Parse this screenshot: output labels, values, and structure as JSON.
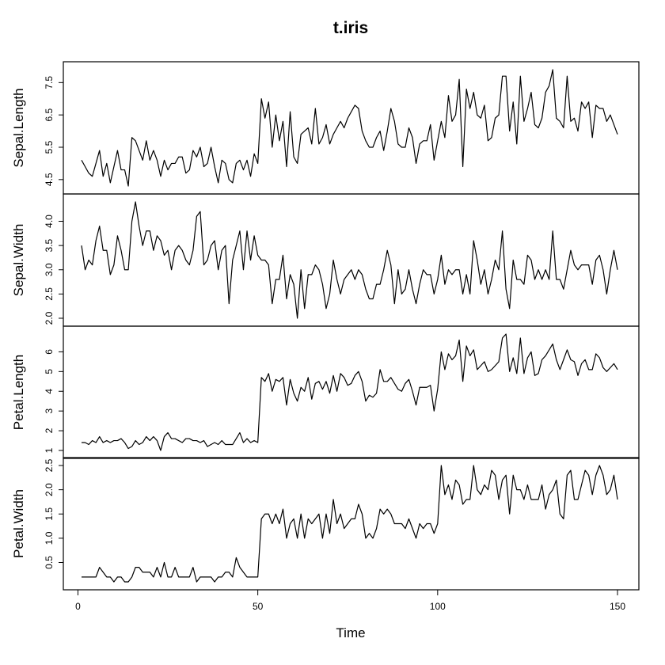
{
  "chart_data": {
    "type": "line",
    "title": "t.iris",
    "xlabel": "Time",
    "xlim": [
      1,
      150
    ],
    "x_ticks": [
      0,
      50,
      100,
      150
    ],
    "x_start": 1,
    "panels": [
      {
        "name": "Sepal.Length",
        "ylim": [
          4.3,
          7.9
        ],
        "y_ticks": [
          4.5,
          5.5,
          6.5,
          7.5
        ],
        "values": [
          5.1,
          4.9,
          4.7,
          4.6,
          5.0,
          5.4,
          4.6,
          5.0,
          4.4,
          4.9,
          5.4,
          4.8,
          4.8,
          4.3,
          5.8,
          5.7,
          5.4,
          5.1,
          5.7,
          5.1,
          5.4,
          5.1,
          4.6,
          5.1,
          4.8,
          5.0,
          5.0,
          5.2,
          5.2,
          4.7,
          4.8,
          5.4,
          5.2,
          5.5,
          4.9,
          5.0,
          5.5,
          4.9,
          4.4,
          5.1,
          5.0,
          4.5,
          4.4,
          5.0,
          5.1,
          4.8,
          5.1,
          4.6,
          5.3,
          5.0,
          7.0,
          6.4,
          6.9,
          5.5,
          6.5,
          5.7,
          6.3,
          4.9,
          6.6,
          5.2,
          5.0,
          5.9,
          6.0,
          6.1,
          5.6,
          6.7,
          5.6,
          5.8,
          6.2,
          5.6,
          5.9,
          6.1,
          6.3,
          6.1,
          6.4,
          6.6,
          6.8,
          6.7,
          6.0,
          5.7,
          5.5,
          5.5,
          5.8,
          6.0,
          5.4,
          6.0,
          6.7,
          6.3,
          5.6,
          5.5,
          5.5,
          6.1,
          5.8,
          5.0,
          5.6,
          5.7,
          5.7,
          6.2,
          5.1,
          5.7,
          6.3,
          5.8,
          7.1,
          6.3,
          6.5,
          7.6,
          4.9,
          7.3,
          6.7,
          7.2,
          6.5,
          6.4,
          6.8,
          5.7,
          5.8,
          6.4,
          6.5,
          7.7,
          7.7,
          6.0,
          6.9,
          5.6,
          7.7,
          6.3,
          6.7,
          7.2,
          6.2,
          6.1,
          6.4,
          7.2,
          7.4,
          7.9,
          6.4,
          6.3,
          6.1,
          7.7,
          6.3,
          6.4,
          6.0,
          6.9,
          6.7,
          6.9,
          5.8,
          6.8,
          6.7,
          6.7,
          6.3,
          6.5,
          6.2,
          5.9
        ]
      },
      {
        "name": "Sepal.Width",
        "ylim": [
          2.0,
          4.4
        ],
        "y_ticks": [
          2.0,
          2.5,
          3.0,
          3.5,
          4.0
        ],
        "values": [
          3.5,
          3.0,
          3.2,
          3.1,
          3.6,
          3.9,
          3.4,
          3.4,
          2.9,
          3.1,
          3.7,
          3.4,
          3.0,
          3.0,
          4.0,
          4.4,
          3.9,
          3.5,
          3.8,
          3.8,
          3.4,
          3.7,
          3.6,
          3.3,
          3.4,
          3.0,
          3.4,
          3.5,
          3.4,
          3.2,
          3.1,
          3.4,
          4.1,
          4.2,
          3.1,
          3.2,
          3.5,
          3.6,
          3.0,
          3.4,
          3.5,
          2.3,
          3.2,
          3.5,
          3.8,
          3.0,
          3.8,
          3.2,
          3.7,
          3.3,
          3.2,
          3.2,
          3.1,
          2.3,
          2.8,
          2.8,
          3.3,
          2.4,
          2.9,
          2.7,
          2.0,
          3.0,
          2.2,
          2.9,
          2.9,
          3.1,
          3.0,
          2.7,
          2.2,
          2.5,
          3.2,
          2.8,
          2.5,
          2.8,
          2.9,
          3.0,
          2.8,
          3.0,
          2.9,
          2.6,
          2.4,
          2.4,
          2.7,
          2.7,
          3.0,
          3.4,
          3.1,
          2.3,
          3.0,
          2.5,
          2.6,
          3.0,
          2.6,
          2.3,
          2.7,
          3.0,
          2.9,
          2.9,
          2.5,
          2.8,
          3.3,
          2.7,
          3.0,
          2.9,
          3.0,
          3.0,
          2.5,
          2.9,
          2.5,
          3.6,
          3.2,
          2.7,
          3.0,
          2.5,
          2.8,
          3.2,
          3.0,
          3.8,
          2.6,
          2.2,
          3.2,
          2.8,
          2.8,
          2.7,
          3.3,
          3.2,
          2.8,
          3.0,
          2.8,
          3.0,
          2.8,
          3.8,
          2.8,
          2.8,
          2.6,
          3.0,
          3.4,
          3.1,
          3.0,
          3.1,
          3.1,
          3.1,
          2.7,
          3.2,
          3.3,
          3.0,
          2.5,
          3.0,
          3.4,
          3.0
        ]
      },
      {
        "name": "Petal.Length",
        "ylim": [
          1.0,
          6.9
        ],
        "y_ticks": [
          1,
          2,
          3,
          4,
          5,
          6
        ],
        "values": [
          1.4,
          1.4,
          1.3,
          1.5,
          1.4,
          1.7,
          1.4,
          1.5,
          1.4,
          1.5,
          1.5,
          1.6,
          1.4,
          1.1,
          1.2,
          1.5,
          1.3,
          1.4,
          1.7,
          1.5,
          1.7,
          1.5,
          1.0,
          1.7,
          1.9,
          1.6,
          1.6,
          1.5,
          1.4,
          1.6,
          1.6,
          1.5,
          1.5,
          1.4,
          1.5,
          1.2,
          1.3,
          1.4,
          1.3,
          1.5,
          1.3,
          1.3,
          1.3,
          1.6,
          1.9,
          1.4,
          1.6,
          1.4,
          1.5,
          1.4,
          4.7,
          4.5,
          4.9,
          4.0,
          4.6,
          4.5,
          4.7,
          3.3,
          4.6,
          3.9,
          3.5,
          4.2,
          4.0,
          4.7,
          3.6,
          4.4,
          4.5,
          4.1,
          4.5,
          3.9,
          4.8,
          4.0,
          4.9,
          4.7,
          4.3,
          4.4,
          4.8,
          5.0,
          4.5,
          3.5,
          3.8,
          3.7,
          3.9,
          5.1,
          4.5,
          4.5,
          4.7,
          4.4,
          4.1,
          4.0,
          4.4,
          4.6,
          4.0,
          3.3,
          4.2,
          4.2,
          4.2,
          4.3,
          3.0,
          4.1,
          6.0,
          5.1,
          5.9,
          5.6,
          5.8,
          6.6,
          4.5,
          6.3,
          5.8,
          6.1,
          5.1,
          5.3,
          5.5,
          5.0,
          5.1,
          5.3,
          5.5,
          6.7,
          6.9,
          5.0,
          5.7,
          4.9,
          6.7,
          4.9,
          5.7,
          6.0,
          4.8,
          4.9,
          5.6,
          5.8,
          6.1,
          6.4,
          5.6,
          5.1,
          5.6,
          6.1,
          5.6,
          5.5,
          4.8,
          5.4,
          5.6,
          5.1,
          5.1,
          5.9,
          5.7,
          5.2,
          5.0,
          5.2,
          5.4,
          5.1
        ]
      },
      {
        "name": "Petal.Width",
        "ylim": [
          0.1,
          2.5
        ],
        "y_ticks": [
          0.5,
          1.0,
          1.5,
          2.0,
          2.5
        ],
        "values": [
          0.2,
          0.2,
          0.2,
          0.2,
          0.2,
          0.4,
          0.3,
          0.2,
          0.2,
          0.1,
          0.2,
          0.2,
          0.1,
          0.1,
          0.2,
          0.4,
          0.4,
          0.3,
          0.3,
          0.3,
          0.2,
          0.4,
          0.2,
          0.5,
          0.2,
          0.2,
          0.4,
          0.2,
          0.2,
          0.2,
          0.2,
          0.4,
          0.1,
          0.2,
          0.2,
          0.2,
          0.2,
          0.1,
          0.2,
          0.2,
          0.3,
          0.3,
          0.2,
          0.6,
          0.4,
          0.3,
          0.2,
          0.2,
          0.2,
          0.2,
          1.4,
          1.5,
          1.5,
          1.3,
          1.5,
          1.3,
          1.6,
          1.0,
          1.3,
          1.4,
          1.0,
          1.5,
          1.0,
          1.4,
          1.3,
          1.4,
          1.5,
          1.0,
          1.5,
          1.1,
          1.8,
          1.3,
          1.5,
          1.2,
          1.3,
          1.4,
          1.4,
          1.7,
          1.5,
          1.0,
          1.1,
          1.0,
          1.2,
          1.6,
          1.5,
          1.6,
          1.5,
          1.3,
          1.3,
          1.3,
          1.2,
          1.4,
          1.2,
          1.0,
          1.3,
          1.2,
          1.3,
          1.3,
          1.1,
          1.3,
          2.5,
          1.9,
          2.1,
          1.8,
          2.2,
          2.1,
          1.7,
          1.8,
          1.8,
          2.5,
          2.0,
          1.9,
          2.1,
          2.0,
          2.4,
          2.3,
          1.8,
          2.2,
          2.3,
          1.5,
          2.3,
          2.0,
          2.0,
          1.8,
          2.1,
          1.8,
          1.8,
          1.8,
          2.1,
          1.6,
          1.9,
          2.0,
          2.2,
          1.5,
          1.4,
          2.3,
          2.4,
          1.8,
          1.8,
          2.1,
          2.4,
          2.3,
          1.9,
          2.3,
          2.5,
          2.3,
          1.9,
          2.0,
          2.3,
          1.8
        ]
      }
    ]
  }
}
